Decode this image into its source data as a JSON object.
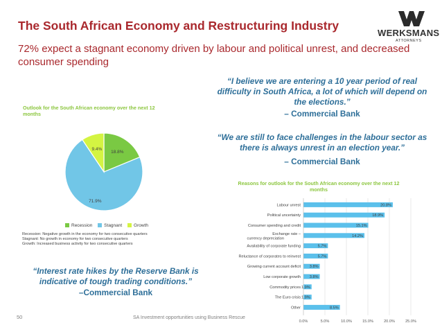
{
  "header": {
    "title": "The South African Economy and Restructuring Industry",
    "subtitle": "72% expect a stagnant economy driven by labour and political unrest, and decreased consumer spending"
  },
  "logo": {
    "name": "WERKSMANS",
    "tagline": "ATTORNEYS",
    "icon": "w-mark-icon"
  },
  "quotes": [
    {
      "text": "“I believe we are entering a 10 year period of real difficulty in South Africa, a lot of which will depend on the elections.”",
      "attribution": "– Commercial Bank"
    },
    {
      "text": "“We are still to face challenges in the labour sector as there is always unrest in an election year.”",
      "attribution": "– Commercial Bank"
    },
    {
      "text": "“Interest rate hikes by the Reserve Bank is indicative of tough trading conditions.”",
      "attribution": "–Commercial Bank"
    }
  ],
  "footer": {
    "page_number": "50",
    "text": "SA Investment opportunities using Business Rescue"
  },
  "colors": {
    "title_red": "#a9282d",
    "quote_blue": "#2e6f99",
    "chart_title_green": "#8cc63f",
    "bar_blue": "#5bc0eb"
  },
  "pie_notes": [
    "Recession: Negative growth in the economy for two consecutive quarters",
    "Stagnant: No growth in economy for two consecutive quarters",
    "Growth: Increased business activity for two consecutive quarters"
  ],
  "chart_data": [
    {
      "type": "pie",
      "title": "Outlook for the South African economy over the next 12 months",
      "legend_position": "bottom",
      "labels": [
        "Recession",
        "Stagnant",
        "Growth"
      ],
      "values": [
        18.8,
        71.9,
        9.4
      ],
      "value_labels": [
        "18.8%",
        "71.9%",
        "9.4%"
      ],
      "colors": [
        "#7ac943",
        "#71c6e7",
        "#d4f442"
      ]
    },
    {
      "type": "bar",
      "orientation": "horizontal",
      "title": "Reasons for outlook for the South African economy over the next 12 months",
      "categories": [
        "Labour unrest",
        "Political uncertainty",
        "Consumer spending and credit",
        "Exchange rate – currency depreciation",
        "Availability of corporate funding",
        "Reluctance of corporates to reinvest",
        "Growing current account deficit",
        "Low corporate growth",
        "Commodity prices",
        "The Euro crisis",
        "Other"
      ],
      "values": [
        20.8,
        18.9,
        15.1,
        14.2,
        5.7,
        5.7,
        3.8,
        3.8,
        1.9,
        1.9,
        8.5
      ],
      "value_labels": [
        "20.8%",
        "18.9%",
        "15.1%",
        "14.2%",
        "5.7%",
        "5.7%",
        "3.8%",
        "3.8%",
        "1.9%",
        "1.9%",
        "8.5%"
      ],
      "xlim": [
        0,
        25
      ],
      "x_ticks": [
        "0.0%",
        "5.0%",
        "10.0%",
        "15.0%",
        "20.0%",
        "25.0%"
      ],
      "grid": true
    }
  ]
}
